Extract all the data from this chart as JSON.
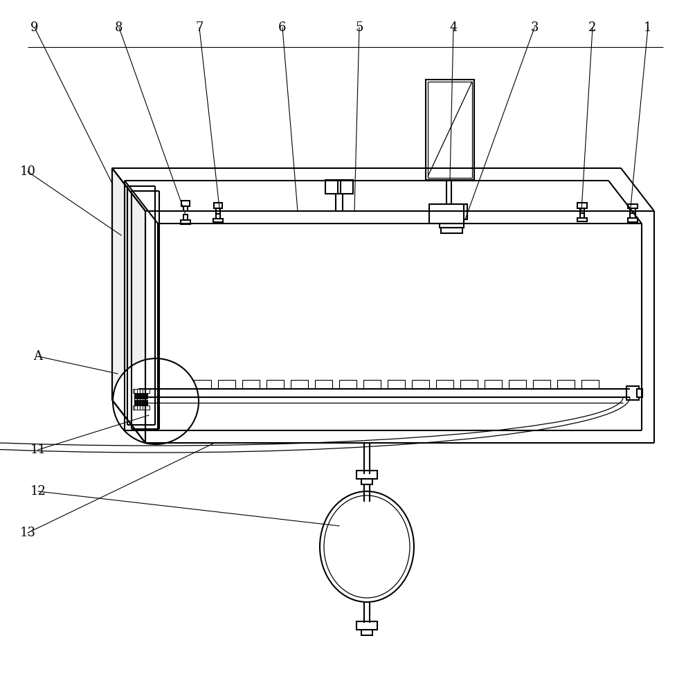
{
  "bg_color": "#ffffff",
  "line_color": "#000000",
  "lw": 1.5,
  "lw_thin": 0.9,
  "fig_width": 9.79,
  "fig_height": 10.0,
  "label_fontsize": 13
}
